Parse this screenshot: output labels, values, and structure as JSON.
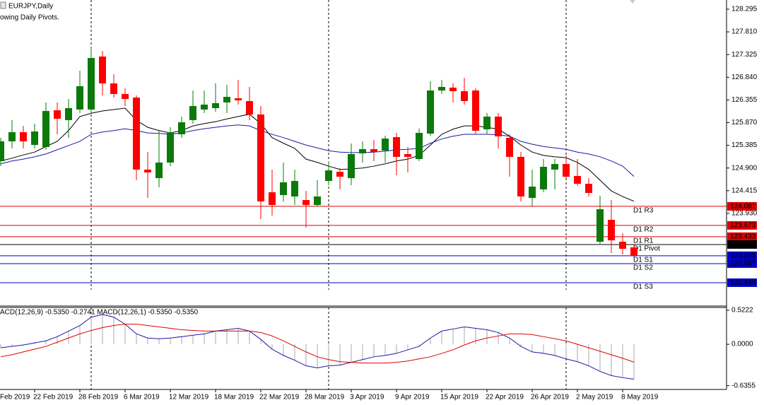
{
  "header": {
    "symbol": "EURJPY,Daily",
    "note": "owing Daily Pivots."
  },
  "chart_data": [
    {
      "type": "candlestick",
      "first_label": "Feb 2019",
      "categories": [
        null,
        null,
        null,
        "22 Feb 2019",
        null,
        null,
        null,
        "28 Feb 2019",
        null,
        null,
        null,
        "6 Mar 2019",
        null,
        null,
        null,
        "12 Mar 2019",
        null,
        null,
        null,
        "18 Mar 2019",
        null,
        null,
        null,
        "22 Mar 2019",
        null,
        null,
        null,
        "28 Mar 2019",
        null,
        null,
        null,
        "3 Apr 2019",
        null,
        null,
        null,
        "9 Apr 2019",
        null,
        null,
        null,
        "15 Apr 2019",
        null,
        null,
        null,
        "22 Apr 2019",
        null,
        null,
        null,
        "26 Apr 2019",
        null,
        null,
        null,
        "2 May 2019",
        null,
        null,
        null,
        "8 May 2019",
        null
      ],
      "open": [
        125.047,
        125.47,
        125.666,
        125.394,
        125.349,
        126.134,
        125.923,
        126.15,
        126.15,
        127.283,
        126.708,
        126.482,
        126.406,
        124.866,
        124.684,
        125.017,
        125.621,
        125.923,
        126.15,
        126.18,
        126.301,
        126.391,
        126.331,
        126.044,
        124.382,
        124.322,
        124.292,
        124.216,
        124.11,
        124.624,
        124.82,
        124.684,
        125.213,
        125.304,
        125.273,
        125.56,
        125.198,
        125.092,
        125.636,
        126.557,
        126.618,
        126.542,
        126.557,
        125.727,
        125.999,
        125.545,
        125.138,
        124.261,
        124.443,
        124.866,
        124.986,
        124.73,
        124.563,
        123.325,
        123.793,
        123.325,
        123.204
      ],
      "high": [
        125.545,
        125.923,
        125.802,
        125.847,
        126.301,
        126.301,
        126.376,
        126.98,
        127.479,
        127.403,
        126.905,
        126.603,
        126.452,
        125.243,
        125.696,
        125.772,
        125.999,
        126.557,
        126.557,
        126.708,
        126.678,
        126.784,
        126.633,
        126.225,
        124.866,
        125.017,
        124.866,
        124.412,
        124.639,
        125.047,
        124.896,
        125.425,
        125.47,
        125.5,
        125.591,
        125.651,
        125.349,
        125.742,
        126.754,
        126.784,
        126.708,
        126.829,
        126.603,
        126.074,
        126.074,
        125.621,
        125.243,
        124.866,
        125.092,
        125.092,
        125.168,
        125.092,
        124.684,
        124.307,
        124.216,
        123.506,
        123.279
      ],
      "low": [
        124.941,
        125.319,
        125.319,
        125.319,
        125.289,
        125.621,
        125.545,
        126.074,
        126.074,
        126.452,
        126.406,
        126.225,
        124.639,
        124.261,
        124.488,
        124.941,
        125.545,
        125.847,
        126.074,
        126.104,
        126.074,
        126.255,
        125.923,
        123.808,
        123.884,
        124.186,
        124.11,
        123.627,
        124.08,
        124.533,
        124.443,
        124.533,
        125.017,
        125.047,
        125.017,
        124.745,
        124.805,
        125.047,
        125.591,
        126.482,
        126.301,
        126.255,
        125.621,
        125.621,
        125.319,
        124.714,
        124.186,
        124.08,
        124.382,
        124.443,
        124.684,
        124.518,
        124.292,
        123.279,
        123.083,
        123.053,
        122.977
      ],
      "close": [
        125.47,
        125.666,
        125.47,
        125.681,
        126.119,
        125.953,
        126.18,
        126.648,
        127.252,
        126.708,
        126.482,
        126.376,
        124.866,
        124.805,
        125.017,
        125.666,
        125.878,
        126.225,
        126.255,
        126.286,
        126.421,
        126.346,
        126.044,
        124.186,
        124.11,
        124.594,
        124.624,
        124.11,
        124.292,
        124.85,
        124.714,
        125.198,
        125.304,
        125.243,
        125.53,
        125.138,
        125.138,
        125.651,
        126.557,
        126.633,
        126.542,
        126.331,
        125.696,
        125.999,
        125.576,
        125.138,
        124.292,
        124.503,
        124.926,
        124.986,
        124.714,
        124.563,
        124.367,
        124.02,
        123.355,
        123.174,
        123.023
      ],
      "up_color": "#0b7a0b",
      "down_color": "#ff0000",
      "lines": [
        {
          "color": "#000000",
          "values": [
            125.05,
            125.11,
            125.18,
            125.24,
            125.36,
            125.47,
            125.7,
            126.0,
            126.07,
            126.12,
            126.15,
            126.18,
            125.92,
            125.77,
            125.7,
            125.65,
            125.7,
            125.8,
            125.85,
            125.89,
            125.95,
            126.0,
            126.05,
            125.85,
            125.55,
            125.43,
            125.32,
            125.09,
            125.02,
            124.94,
            124.87,
            124.88,
            124.9,
            124.94,
            124.99,
            125.05,
            125.09,
            125.17,
            125.39,
            125.62,
            125.73,
            125.8,
            125.8,
            125.77,
            125.73,
            125.58,
            125.39,
            125.24,
            125.17,
            125.14,
            125.12,
            125.02,
            124.87,
            124.64,
            124.41,
            124.29,
            124.19
          ]
        },
        {
          "color": "#1a1aa8",
          "values": [
            124.99,
            125.05,
            125.09,
            125.14,
            125.2,
            125.29,
            125.38,
            125.47,
            125.62,
            125.67,
            125.7,
            125.74,
            125.7,
            125.65,
            125.64,
            125.62,
            125.65,
            125.7,
            125.74,
            125.77,
            125.8,
            125.82,
            125.8,
            125.7,
            125.62,
            125.55,
            125.47,
            125.39,
            125.33,
            125.27,
            125.24,
            125.23,
            125.23,
            125.24,
            125.26,
            125.29,
            125.3,
            125.32,
            125.43,
            125.52,
            125.58,
            125.62,
            125.62,
            125.62,
            125.61,
            125.58,
            125.47,
            125.41,
            125.36,
            125.33,
            125.3,
            125.24,
            125.2,
            125.14,
            125.05,
            124.94,
            124.72
          ]
        }
      ],
      "levels": [
        {
          "label": "D1 R3",
          "value": 124.081,
          "color": "#e00000"
        },
        {
          "label": "D1 R2",
          "value": 123.673,
          "color": "#e00000"
        },
        {
          "label": "D1 R1",
          "value": 123.433,
          "color": "#e00000"
        },
        {
          "label": "D1 Pivot",
          "value": 123.265,
          "color": "#000000"
        },
        {
          "label": "D1 S1",
          "value": 123.025,
          "color": "#0000c8"
        },
        {
          "label": "D1 S2",
          "value": 122.857,
          "color": "#0000c8"
        },
        {
          "label": "D1 S3",
          "value": 122.449,
          "color": "#0000c8"
        }
      ],
      "ylim": [
        121.965,
        128.491
      ],
      "yticks": [
        128.295,
        {
          "value": 127.81,
          "label": "127.810"
        },
        127.325,
        {
          "value": 126.84,
          "label": "126.840"
        },
        126.355,
        {
          "value": 125.87,
          "label": "125.870"
        },
        125.385,
        {
          "value": 124.9,
          "label": "124.900"
        },
        124.415,
        {
          "value": 123.93,
          "label": "123.930"
        }
      ]
    },
    {
      "type": "macd",
      "title": "ACD(12,26,9) -0.5350 -0.2741 MACD(12,26,1) -0.5350 -0.5350",
      "ylim": [
        -0.693,
        0.576
      ],
      "yticks": [
        0.5222,
        {
          "value": 0,
          "label": "0.0000"
        },
        -0.6355
      ],
      "series": [
        {
          "style": "histogram",
          "color": "#a8a8a8",
          "values": [
            -0.053,
            -0.032,
            -0.011,
            0.021,
            0.053,
            0.117,
            0.203,
            0.288,
            0.416,
            0.458,
            0.416,
            0.309,
            0.16,
            0.096,
            0.085,
            0.096,
            0.117,
            0.139,
            0.16,
            0.203,
            0.224,
            0.245,
            0.203,
            0.075,
            -0.075,
            -0.171,
            -0.245,
            -0.33,
            -0.362,
            -0.33,
            -0.32,
            -0.277,
            -0.235,
            -0.192,
            -0.171,
            -0.139,
            -0.085,
            -0.032,
            0.096,
            0.203,
            0.235,
            0.267,
            0.245,
            0.224,
            0.181,
            0.096,
            -0.032,
            -0.117,
            -0.139,
            -0.171,
            -0.224,
            -0.267,
            -0.33,
            -0.416,
            -0.48,
            -0.512,
            -0.535
          ]
        },
        {
          "style": "line",
          "color": "#1a1aa8",
          "values": [
            -0.053,
            -0.032,
            -0.011,
            0.021,
            0.053,
            0.117,
            0.203,
            0.288,
            0.416,
            0.458,
            0.416,
            0.309,
            0.16,
            0.096,
            0.085,
            0.096,
            0.117,
            0.139,
            0.16,
            0.203,
            0.224,
            0.245,
            0.203,
            0.075,
            -0.075,
            -0.171,
            -0.245,
            -0.33,
            -0.362,
            -0.33,
            -0.32,
            -0.277,
            -0.235,
            -0.192,
            -0.171,
            -0.139,
            -0.085,
            -0.032,
            0.096,
            0.203,
            0.235,
            0.267,
            0.245,
            0.224,
            0.181,
            0.096,
            -0.032,
            -0.117,
            -0.139,
            -0.171,
            -0.224,
            -0.267,
            -0.33,
            -0.416,
            -0.48,
            -0.512,
            -0.535
          ]
        },
        {
          "style": "line",
          "color": "#e00000",
          "values": [
            -0.192,
            -0.16,
            -0.117,
            -0.075,
            -0.032,
            0.032,
            0.096,
            0.16,
            0.213,
            0.256,
            0.288,
            0.309,
            0.309,
            0.288,
            0.267,
            0.245,
            0.224,
            0.213,
            0.203,
            0.203,
            0.203,
            0.203,
            0.203,
            0.181,
            0.128,
            0.053,
            -0.032,
            -0.117,
            -0.192,
            -0.235,
            -0.267,
            -0.277,
            -0.288,
            -0.288,
            -0.288,
            -0.277,
            -0.256,
            -0.224,
            -0.192,
            -0.139,
            -0.085,
            -0.011,
            0.053,
            0.096,
            0.128,
            0.16,
            0.16,
            0.149,
            0.117,
            0.085,
            0.053,
            0.0,
            -0.053,
            -0.107,
            -0.16,
            -0.213,
            -0.2741
          ]
        }
      ]
    }
  ]
}
